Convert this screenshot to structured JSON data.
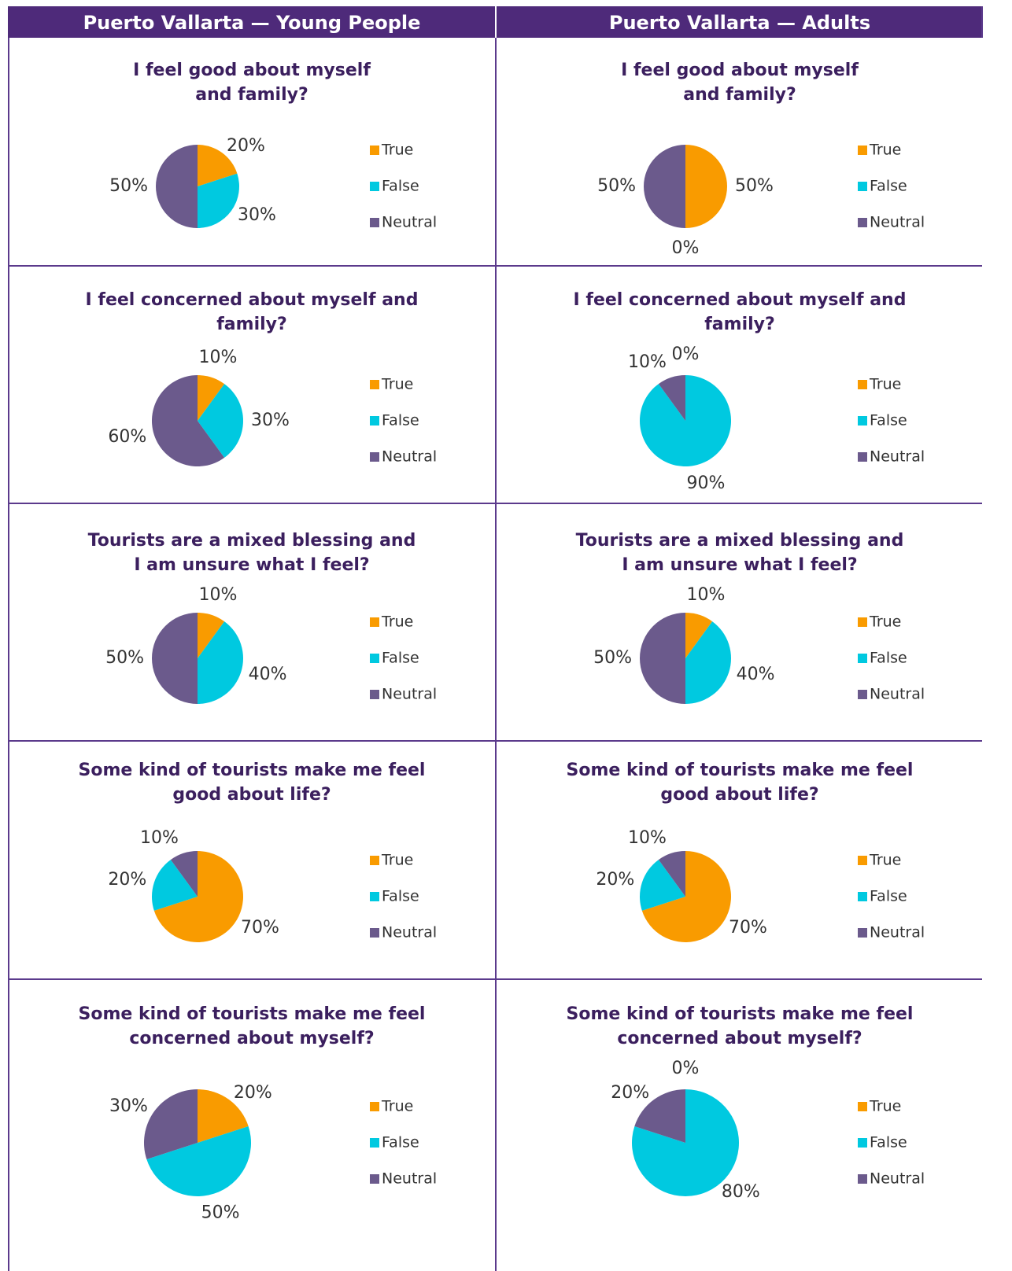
{
  "headers": [
    "Puerto Vallarta — Young People",
    "Puerto Vallarta — Adults"
  ],
  "chart_data": [
    {
      "type": "pie",
      "title": [
        "I feel good about myself",
        "and family?"
      ],
      "categories": [
        "True",
        "False",
        "Neutral"
      ],
      "values": [
        20,
        30,
        50
      ],
      "value_labels": [
        "20%",
        "30%",
        "50%"
      ],
      "colors": [
        "#f99b00",
        "#00c9e0",
        "#6b5a8c"
      ]
    },
    {
      "type": "pie",
      "title": [
        "I feel good about myself",
        "and family?"
      ],
      "categories": [
        "True",
        "False",
        "Neutral"
      ],
      "values": [
        50,
        0,
        50
      ],
      "value_labels": [
        "50%",
        "0%",
        "50%"
      ],
      "colors": [
        "#f99b00",
        "#00c9e0",
        "#6b5a8c"
      ]
    },
    {
      "type": "pie",
      "title": [
        "I feel concerned about myself and",
        "family?"
      ],
      "categories": [
        "True",
        "False",
        "Neutral"
      ],
      "values": [
        10,
        30,
        60
      ],
      "value_labels": [
        "10%",
        "30%",
        "60%"
      ],
      "colors": [
        "#f99b00",
        "#00c9e0",
        "#6b5a8c"
      ]
    },
    {
      "type": "pie",
      "title": [
        "I feel concerned about myself and",
        "family?"
      ],
      "categories": [
        "True",
        "False",
        "Neutral"
      ],
      "values": [
        0,
        90,
        10
      ],
      "value_labels": [
        "0%",
        "90%",
        "10%"
      ],
      "colors": [
        "#f99b00",
        "#00c9e0",
        "#6b5a8c"
      ]
    },
    {
      "type": "pie",
      "title": [
        "Tourists are a mixed blessing and",
        "I am unsure what I feel?"
      ],
      "categories": [
        "True",
        "False",
        "Neutral"
      ],
      "values": [
        10,
        40,
        50
      ],
      "value_labels": [
        "10%",
        "40%",
        "50%"
      ],
      "colors": [
        "#f99b00",
        "#00c9e0",
        "#6b5a8c"
      ]
    },
    {
      "type": "pie",
      "title": [
        "Tourists are a mixed blessing and",
        "I am unsure what I feel?"
      ],
      "categories": [
        "True",
        "False",
        "Neutral"
      ],
      "values": [
        10,
        40,
        50
      ],
      "value_labels": [
        "10%",
        "40%",
        "50%"
      ],
      "colors": [
        "#f99b00",
        "#00c9e0",
        "#6b5a8c"
      ]
    },
    {
      "type": "pie",
      "title": [
        "Some kind of tourists make me feel",
        "good about life?"
      ],
      "categories": [
        "True",
        "False",
        "Neutral"
      ],
      "values": [
        70,
        20,
        10
      ],
      "value_labels": [
        "70%",
        "20%",
        "10%"
      ],
      "colors": [
        "#f99b00",
        "#00c9e0",
        "#6b5a8c"
      ]
    },
    {
      "type": "pie",
      "title": [
        "Some kind of tourists make me feel",
        "good about life?"
      ],
      "categories": [
        "True",
        "False",
        "Neutral"
      ],
      "values": [
        70,
        20,
        10
      ],
      "value_labels": [
        "70%",
        "20%",
        "10%"
      ],
      "colors": [
        "#f99b00",
        "#00c9e0",
        "#6b5a8c"
      ]
    },
    {
      "type": "pie",
      "title": [
        "Some kind of tourists make me feel",
        "concerned about myself?"
      ],
      "categories": [
        "True",
        "False",
        "Neutral"
      ],
      "values": [
        20,
        50,
        30
      ],
      "value_labels": [
        "20%",
        "50%",
        "30%"
      ],
      "colors": [
        "#f99b00",
        "#00c9e0",
        "#6b5a8c"
      ]
    },
    {
      "type": "pie",
      "title": [
        "Some kind of tourists make me feel",
        "concerned about myself?"
      ],
      "categories": [
        "True",
        "False",
        "Neutral"
      ],
      "values": [
        0,
        80,
        20
      ],
      "value_labels": [
        "0%",
        "80%",
        "20%"
      ],
      "colors": [
        "#f99b00",
        "#00c9e0",
        "#6b5a8c"
      ]
    }
  ]
}
